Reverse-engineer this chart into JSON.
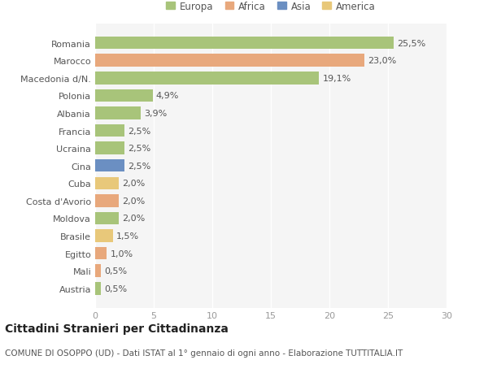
{
  "countries": [
    "Romania",
    "Marocco",
    "Macedonia d/N.",
    "Polonia",
    "Albania",
    "Francia",
    "Ucraina",
    "Cina",
    "Cuba",
    "Costa d'Avorio",
    "Moldova",
    "Brasile",
    "Egitto",
    "Mali",
    "Austria"
  ],
  "values": [
    25.5,
    23.0,
    19.1,
    4.9,
    3.9,
    2.5,
    2.5,
    2.5,
    2.0,
    2.0,
    2.0,
    1.5,
    1.0,
    0.5,
    0.5
  ],
  "labels": [
    "25,5%",
    "23,0%",
    "19,1%",
    "4,9%",
    "3,9%",
    "2,5%",
    "2,5%",
    "2,5%",
    "2,0%",
    "2,0%",
    "2,0%",
    "1,5%",
    "1,0%",
    "0,5%",
    "0,5%"
  ],
  "colors": [
    "#a8c47a",
    "#e8a87c",
    "#a8c47a",
    "#a8c47a",
    "#a8c47a",
    "#a8c47a",
    "#a8c47a",
    "#6b8fc2",
    "#e8c87a",
    "#e8a87c",
    "#a8c47a",
    "#e8c87a",
    "#e8a87c",
    "#e8a87c",
    "#a8c47a"
  ],
  "legend_labels": [
    "Europa",
    "Africa",
    "Asia",
    "America"
  ],
  "legend_colors": [
    "#a8c47a",
    "#e8a87c",
    "#6b8fc2",
    "#e8c87a"
  ],
  "title": "Cittadini Stranieri per Cittadinanza",
  "subtitle": "COMUNE DI OSOPPO (UD) - Dati ISTAT al 1° gennaio di ogni anno - Elaborazione TUTTITALIA.IT",
  "xlim": [
    0,
    30
  ],
  "xticks": [
    0,
    5,
    10,
    15,
    20,
    25,
    30
  ],
  "bg_color": "#ffffff",
  "plot_bg_color": "#f5f5f5",
  "grid_color": "#ffffff",
  "bar_height": 0.72,
  "title_fontsize": 10,
  "subtitle_fontsize": 7.5,
  "label_fontsize": 8,
  "tick_fontsize": 8,
  "legend_fontsize": 8.5
}
